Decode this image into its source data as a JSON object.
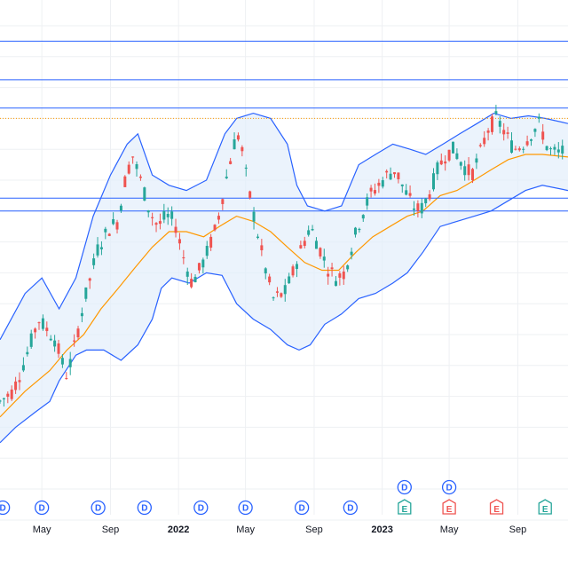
{
  "chart_data": {
    "type": "candlestick",
    "x_tick_labels": [
      {
        "label": "May",
        "date": "2021-05-01",
        "bold": false
      },
      {
        "label": "Sep",
        "date": "2021-09-01",
        "bold": false
      },
      {
        "label": "2022",
        "date": "2022-01-01",
        "bold": true
      },
      {
        "label": "May",
        "date": "2022-05-01",
        "bold": false
      },
      {
        "label": "Sep",
        "date": "2022-09-01",
        "bold": false
      },
      {
        "label": "2023",
        "date": "2023-01-01",
        "bold": true
      },
      {
        "label": "May",
        "date": "2023-05-01",
        "bold": false
      },
      {
        "label": "Sep",
        "date": "2023-09-01",
        "bold": false
      }
    ],
    "x_range": [
      "2021-02-15",
      "2023-11-30"
    ],
    "y_range": [
      0,
      100
    ],
    "grid": true,
    "colors": {
      "up": "#26a69a",
      "down": "#ef5350",
      "band": "#2962ff",
      "band_fill": "#e3eefb",
      "basis": "#ff9800",
      "level_line": "#2962ff",
      "dotted_level": "#ff9800",
      "grid": "#eef0f3",
      "dividend": "#2962ff",
      "earnings_up": "#26a69a",
      "earnings_down": "#ef5350"
    },
    "horizontal_levels": [
      92,
      84.5,
      79,
      61.5,
      59
    ],
    "dotted_level": 77,
    "bollinger_upper": [
      [
        "2021-02-15",
        34
      ],
      [
        "2021-04-01",
        43
      ],
      [
        "2021-05-01",
        46
      ],
      [
        "2021-06-01",
        40
      ],
      [
        "2021-07-01",
        46
      ],
      [
        "2021-08-01",
        58
      ],
      [
        "2021-09-01",
        66
      ],
      [
        "2021-10-01",
        72
      ],
      [
        "2021-10-20",
        74
      ],
      [
        "2021-11-15",
        66
      ],
      [
        "2021-12-15",
        64
      ],
      [
        "2022-01-15",
        63
      ],
      [
        "2022-02-20",
        65
      ],
      [
        "2022-03-25",
        74
      ],
      [
        "2022-04-15",
        77
      ],
      [
        "2022-05-15",
        78
      ],
      [
        "2022-06-15",
        77
      ],
      [
        "2022-07-15",
        72
      ],
      [
        "2022-08-01",
        64
      ],
      [
        "2022-08-20",
        60
      ],
      [
        "2022-09-20",
        59
      ],
      [
        "2022-10-20",
        60
      ],
      [
        "2022-11-20",
        68
      ],
      [
        "2022-12-20",
        70
      ],
      [
        "2023-01-20",
        72
      ],
      [
        "2023-02-20",
        71
      ],
      [
        "2023-03-20",
        70
      ],
      [
        "2023-04-20",
        72
      ],
      [
        "2023-05-20",
        74
      ],
      [
        "2023-06-20",
        76
      ],
      [
        "2023-07-20",
        78
      ],
      [
        "2023-08-20",
        77
      ],
      [
        "2023-09-20",
        77.5
      ],
      [
        "2023-10-20",
        77
      ],
      [
        "2023-11-30",
        76
      ]
    ],
    "bollinger_lower": [
      [
        "2021-02-15",
        14
      ],
      [
        "2021-03-15",
        17
      ],
      [
        "2021-04-20",
        20
      ],
      [
        "2021-05-15",
        22
      ],
      [
        "2021-06-01",
        26
      ],
      [
        "2021-07-01",
        31
      ],
      [
        "2021-07-20",
        32
      ],
      [
        "2021-08-20",
        32
      ],
      [
        "2021-09-20",
        30
      ],
      [
        "2021-10-20",
        33
      ],
      [
        "2021-11-15",
        38
      ],
      [
        "2021-12-01",
        44
      ],
      [
        "2021-12-20",
        46
      ],
      [
        "2022-01-20",
        45
      ],
      [
        "2022-02-20",
        47
      ],
      [
        "2022-03-20",
        46.5
      ],
      [
        "2022-04-15",
        41
      ],
      [
        "2022-05-15",
        38
      ],
      [
        "2022-06-15",
        36
      ],
      [
        "2022-07-15",
        33
      ],
      [
        "2022-08-05",
        32
      ],
      [
        "2022-08-25",
        33
      ],
      [
        "2022-09-20",
        37
      ],
      [
        "2022-10-20",
        39
      ],
      [
        "2022-11-20",
        42
      ],
      [
        "2022-12-20",
        43
      ],
      [
        "2023-01-20",
        45
      ],
      [
        "2023-02-15",
        47
      ],
      [
        "2023-03-15",
        51
      ],
      [
        "2023-04-15",
        56
      ],
      [
        "2023-05-15",
        57
      ],
      [
        "2023-06-15",
        58
      ],
      [
        "2023-07-15",
        59
      ],
      [
        "2023-08-15",
        61
      ],
      [
        "2023-09-15",
        63
      ],
      [
        "2023-10-15",
        64
      ],
      [
        "2023-11-30",
        63
      ]
    ],
    "bollinger_basis": [
      [
        "2021-02-15",
        19
      ],
      [
        "2021-04-01",
        24
      ],
      [
        "2021-05-15",
        28
      ],
      [
        "2021-06-15",
        32
      ],
      [
        "2021-07-15",
        35
      ],
      [
        "2021-08-15",
        40
      ],
      [
        "2021-09-15",
        44
      ],
      [
        "2021-10-15",
        48
      ],
      [
        "2021-11-15",
        52
      ],
      [
        "2021-12-15",
        55
      ],
      [
        "2022-01-15",
        55
      ],
      [
        "2022-02-15",
        54
      ],
      [
        "2022-03-15",
        56
      ],
      [
        "2022-04-15",
        58
      ],
      [
        "2022-05-15",
        57
      ],
      [
        "2022-06-15",
        55
      ],
      [
        "2022-07-15",
        52
      ],
      [
        "2022-08-15",
        49
      ],
      [
        "2022-09-15",
        47.5
      ],
      [
        "2022-10-15",
        47.5
      ],
      [
        "2022-11-15",
        51
      ],
      [
        "2022-12-15",
        54
      ],
      [
        "2023-01-15",
        56
      ],
      [
        "2023-02-15",
        58
      ],
      [
        "2023-03-15",
        59
      ],
      [
        "2023-04-15",
        62
      ],
      [
        "2023-05-15",
        63
      ],
      [
        "2023-06-15",
        65
      ],
      [
        "2023-07-15",
        67
      ],
      [
        "2023-08-15",
        69
      ],
      [
        "2023-09-15",
        70
      ],
      [
        "2023-10-15",
        70
      ],
      [
        "2023-11-30",
        69.5
      ]
    ],
    "price_path": [
      [
        "2021-02-15",
        22
      ],
      [
        "2021-03-10",
        24
      ],
      [
        "2021-03-25",
        28
      ],
      [
        "2021-04-10",
        33
      ],
      [
        "2021-04-25",
        38
      ],
      [
        "2021-05-10",
        36
      ],
      [
        "2021-05-25",
        34
      ],
      [
        "2021-06-05",
        30
      ],
      [
        "2021-06-15",
        27
      ],
      [
        "2021-06-25",
        31
      ],
      [
        "2021-07-15",
        41
      ],
      [
        "2021-08-10",
        52
      ],
      [
        "2021-09-01",
        56
      ],
      [
        "2021-09-15",
        57
      ],
      [
        "2021-09-25",
        64
      ],
      [
        "2021-10-10",
        70
      ],
      [
        "2021-10-25",
        65
      ],
      [
        "2021-11-10",
        59
      ],
      [
        "2021-11-25",
        56
      ],
      [
        "2021-12-10",
        58
      ],
      [
        "2021-12-25",
        57
      ],
      [
        "2022-01-10",
        50
      ],
      [
        "2022-01-25",
        45
      ],
      [
        "2022-02-10",
        48
      ],
      [
        "2022-02-25",
        52
      ],
      [
        "2022-03-10",
        56
      ],
      [
        "2022-03-25",
        64
      ],
      [
        "2022-04-10",
        72
      ],
      [
        "2022-04-20",
        74
      ],
      [
        "2022-05-05",
        64
      ],
      [
        "2022-05-20",
        56
      ],
      [
        "2022-06-05",
        48
      ],
      [
        "2022-06-20",
        42
      ],
      [
        "2022-07-10",
        43
      ],
      [
        "2022-07-25",
        47
      ],
      [
        "2022-08-10",
        52
      ],
      [
        "2022-08-25",
        56
      ],
      [
        "2022-09-10",
        52
      ],
      [
        "2022-09-25",
        48
      ],
      [
        "2022-10-10",
        46
      ],
      [
        "2022-10-25",
        47
      ],
      [
        "2022-11-10",
        53
      ],
      [
        "2022-11-25",
        58
      ],
      [
        "2022-12-10",
        62
      ],
      [
        "2022-12-25",
        64
      ],
      [
        "2023-01-10",
        66
      ],
      [
        "2023-01-25",
        67
      ],
      [
        "2023-02-10",
        63
      ],
      [
        "2023-02-25",
        60
      ],
      [
        "2023-03-10",
        59
      ],
      [
        "2023-03-25",
        62
      ],
      [
        "2023-04-10",
        67
      ],
      [
        "2023-04-25",
        70
      ],
      [
        "2023-05-10",
        71
      ],
      [
        "2023-05-25",
        68
      ],
      [
        "2023-06-10",
        66
      ],
      [
        "2023-06-25",
        70
      ],
      [
        "2023-07-10",
        75
      ],
      [
        "2023-07-25",
        77
      ],
      [
        "2023-08-10",
        74
      ],
      [
        "2023-08-25",
        71
      ],
      [
        "2023-09-10",
        72
      ],
      [
        "2023-09-25",
        74
      ],
      [
        "2023-10-10",
        76
      ],
      [
        "2023-10-25",
        71
      ],
      [
        "2023-11-10",
        70
      ],
      [
        "2023-11-30",
        71
      ]
    ],
    "event_markers": [
      {
        "type": "dividend",
        "label": "D",
        "date": "2021-02-20",
        "row": 1
      },
      {
        "type": "dividend",
        "label": "D",
        "date": "2021-05-01",
        "row": 1
      },
      {
        "type": "dividend",
        "label": "D",
        "date": "2021-08-10",
        "row": 1
      },
      {
        "type": "dividend",
        "label": "D",
        "date": "2021-11-01",
        "row": 1
      },
      {
        "type": "dividend",
        "label": "D",
        "date": "2022-02-10",
        "row": 1
      },
      {
        "type": "dividend",
        "label": "D",
        "date": "2022-05-01",
        "row": 1
      },
      {
        "type": "dividend",
        "label": "D",
        "date": "2022-08-10",
        "row": 1
      },
      {
        "type": "dividend",
        "label": "D",
        "date": "2022-11-05",
        "row": 1
      },
      {
        "type": "dividend",
        "label": "D",
        "date": "2023-02-10",
        "row": 0
      },
      {
        "type": "dividend",
        "label": "D",
        "date": "2023-05-01",
        "row": 0
      },
      {
        "type": "earnings",
        "label": "E",
        "direction": "up",
        "date": "2023-02-10",
        "row": 1
      },
      {
        "type": "earnings",
        "label": "E",
        "direction": "down",
        "date": "2023-05-01",
        "row": 1
      },
      {
        "type": "earnings",
        "label": "E",
        "direction": "down",
        "date": "2023-07-25",
        "row": 1
      },
      {
        "type": "earnings",
        "label": "E",
        "direction": "up",
        "date": "2023-10-20",
        "row": 1
      }
    ]
  }
}
